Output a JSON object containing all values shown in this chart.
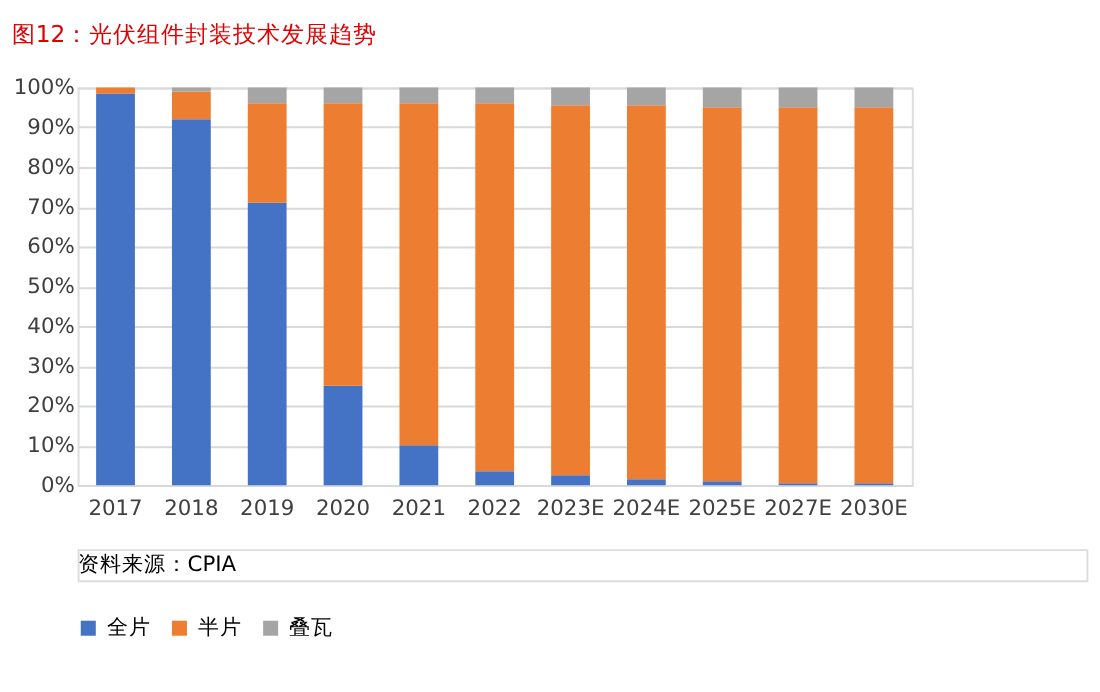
{
  "chart_data": {
    "type": "bar",
    "title": "图12：光伏组件封装技术发展趋势",
    "categories": [
      "2017",
      "2018",
      "2019",
      "2020",
      "2021",
      "2022",
      "2023E",
      "2024E",
      "2025E",
      "2027E",
      "2030E"
    ],
    "stacked": true,
    "series": [
      {
        "name": "全片",
        "color": "#4472c4",
        "values": [
          98.5,
          92,
          71,
          25,
          10,
          3.5,
          2.5,
          1.5,
          1,
          0.5,
          0.5
        ]
      },
      {
        "name": "半片",
        "color": "#ed7d31",
        "values": [
          1.5,
          7,
          25,
          71,
          86,
          92.5,
          93,
          94,
          94,
          94.5,
          94.5
        ]
      },
      {
        "name": "叠瓦",
        "color": "#a5a5a5",
        "values": [
          0,
          1,
          4,
          4,
          4,
          4,
          4.5,
          4.5,
          5,
          5,
          5
        ]
      }
    ],
    "ylim": [
      0,
      100
    ],
    "yticks": [
      {
        "value": 0,
        "label": "0%"
      },
      {
        "value": 10,
        "label": "10%"
      },
      {
        "value": 20,
        "label": "20%"
      },
      {
        "value": 30,
        "label": "30%"
      },
      {
        "value": 40,
        "label": "40%"
      },
      {
        "value": 50,
        "label": "50%"
      },
      {
        "value": 60,
        "label": "60%"
      },
      {
        "value": 70,
        "label": "70%"
      },
      {
        "value": 80,
        "label": "80%"
      },
      {
        "value": 90,
        "label": "90%"
      },
      {
        "value": 100,
        "label": "100%"
      }
    ],
    "grid": "y",
    "legend": "bottom",
    "annotations": [
      "资料来源：CPIA"
    ]
  }
}
